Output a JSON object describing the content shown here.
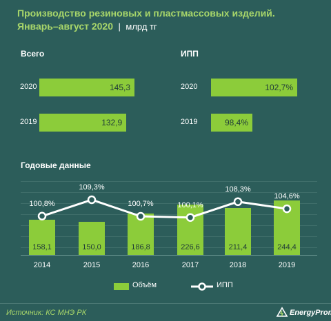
{
  "title_line1": "Производство резиновых и пластмассовых изделий.",
  "title_line2": "Январь–август 2020",
  "unit": "млрд тг",
  "source": "Источник: КС МНЭ РК",
  "brand": "EnergyProm",
  "colors": {
    "background": "#2c5d5a",
    "bar": "#8ccc3a",
    "title": "#a8d66a"
  },
  "chart_data": [
    {
      "type": "bar",
      "orientation": "horizontal",
      "title": "Всего",
      "categories": [
        "2020",
        "2019"
      ],
      "values": [
        145.3,
        132.9
      ],
      "value_labels": [
        "145,3",
        "132,9"
      ]
    },
    {
      "type": "bar",
      "orientation": "horizontal",
      "title": "ИПП",
      "categories": [
        "2020",
        "2019"
      ],
      "values": [
        102.7,
        98.4
      ],
      "value_labels": [
        "102,7%",
        "98,4%"
      ]
    },
    {
      "type": "bar",
      "title": "Годовые данные",
      "categories": [
        "2014",
        "2015",
        "2016",
        "2017",
        "2018",
        "2019"
      ],
      "series": [
        {
          "name": "Объём",
          "type": "bar",
          "values": [
            158.1,
            150.0,
            186.8,
            226.6,
            211.4,
            244.4
          ],
          "value_labels": [
            "158,1",
            "150,0",
            "186,8",
            "226,6",
            "211,4",
            "244,4"
          ]
        },
        {
          "name": "ИПП",
          "type": "line",
          "values": [
            100.8,
            109.3,
            100.7,
            100.1,
            108.3,
            104.6
          ],
          "value_labels": [
            "100,8%",
            "109,3%",
            "100,7%",
            "100,1%",
            "108,3%",
            "104,6%"
          ]
        }
      ],
      "legend": "bottom"
    }
  ]
}
